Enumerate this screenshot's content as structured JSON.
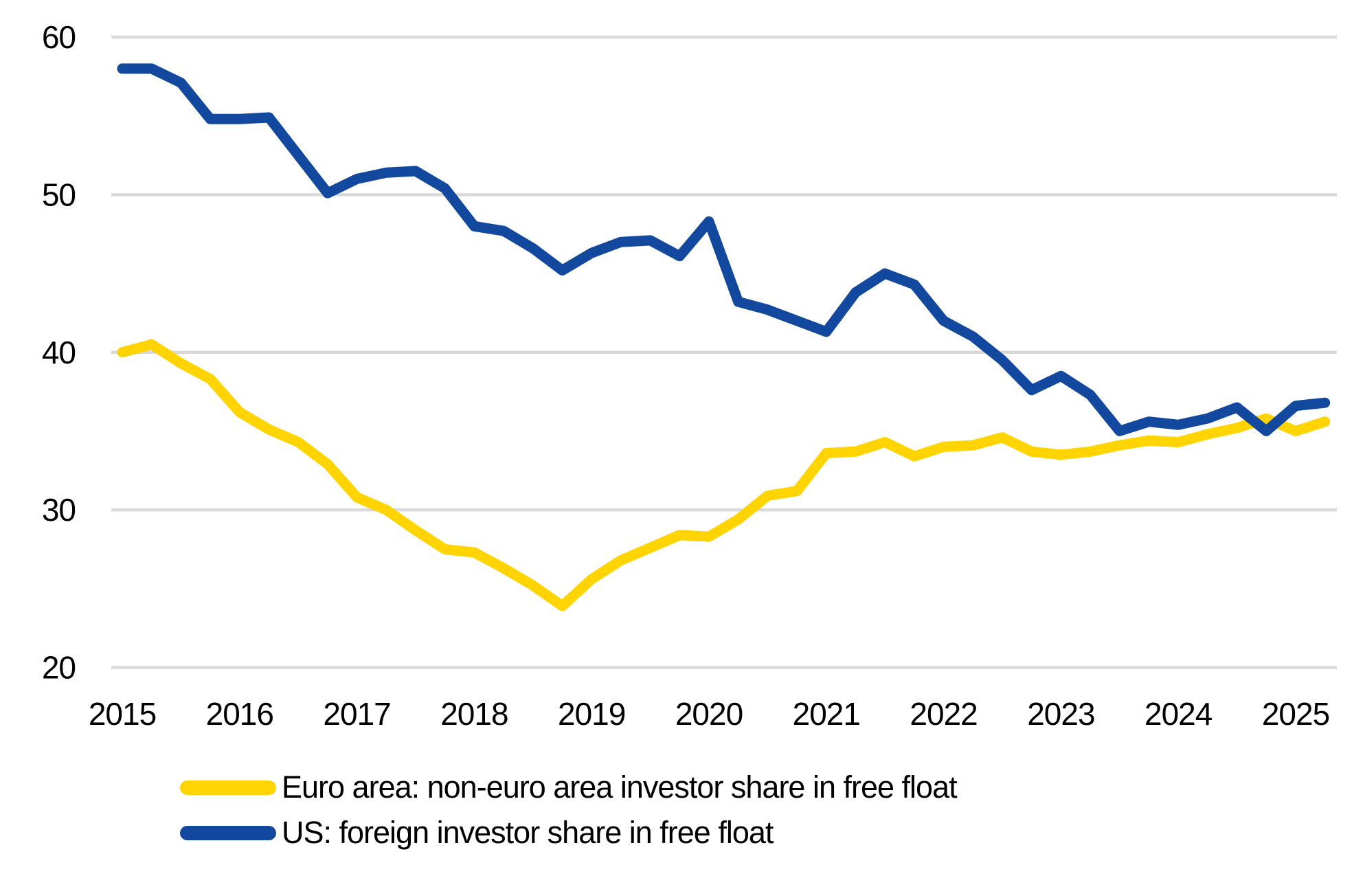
{
  "chart_data": {
    "type": "line",
    "title": "",
    "xlabel": "",
    "ylabel": "",
    "x_unit": "quarterly observations from 2015Q1 to 2025Q2",
    "x_tick_labels": [
      "2015",
      "2016",
      "2017",
      "2018",
      "2019",
      "2020",
      "2021",
      "2022",
      "2023",
      "2024",
      "2025"
    ],
    "y_ticks": [
      20,
      30,
      40,
      50,
      60
    ],
    "ylim": [
      20,
      60
    ],
    "grid": "horizontal",
    "gridline_color": "#d9d9d9",
    "legend_position": "bottom-left",
    "series": [
      {
        "name": "Euro area: non-euro area investor share in free float",
        "color": "#ffd400",
        "values": [
          40.0,
          40.5,
          39.3,
          38.3,
          36.2,
          35.1,
          34.3,
          32.9,
          30.8,
          30.0,
          28.7,
          27.5,
          27.3,
          26.3,
          25.2,
          23.9,
          25.6,
          26.8,
          27.6,
          28.4,
          28.3,
          29.4,
          30.9,
          31.2,
          33.6,
          33.7,
          34.3,
          33.4,
          34.0,
          34.1,
          34.6,
          33.7,
          33.5,
          33.7,
          34.1,
          34.4,
          34.3,
          34.8,
          35.2,
          35.8,
          35.0,
          35.6
        ]
      },
      {
        "name": "US: foreign investor share in free float",
        "color": "#12489e",
        "values": [
          58.0,
          58.0,
          57.1,
          54.8,
          54.8,
          54.9,
          52.5,
          50.1,
          51.0,
          51.4,
          51.5,
          50.4,
          48.0,
          47.7,
          46.6,
          45.2,
          46.3,
          47.0,
          47.1,
          46.1,
          48.3,
          43.2,
          42.7,
          42.0,
          41.3,
          43.8,
          45.0,
          44.3,
          42.0,
          41.0,
          39.5,
          37.6,
          38.5,
          37.3,
          35.0,
          35.6,
          35.4,
          35.8,
          36.5,
          35.0,
          36.6,
          36.8
        ]
      }
    ]
  }
}
